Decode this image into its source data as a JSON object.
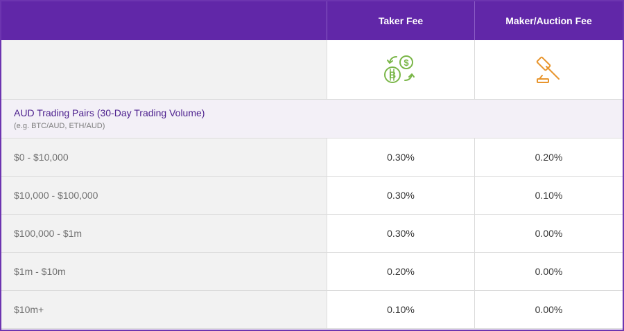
{
  "header": {
    "taker_label": "Taker Fee",
    "maker_label": "Maker/Auction Fee"
  },
  "icons": {
    "taker": "crypto-exchange-icon",
    "maker": "auction-gavel-icon",
    "taker_color": "#7ab648",
    "maker_color": "#e8952d"
  },
  "section": {
    "title": "AUD Trading Pairs (30-Day Trading Volume)",
    "subtitle": "(e.g. BTC/AUD, ETH/AUD)"
  },
  "rows": [
    {
      "tier": "$0 - $10,000",
      "taker": "0.30%",
      "maker": "0.20%"
    },
    {
      "tier": "$10,000 - $100,000",
      "taker": "0.30%",
      "maker": "0.10%"
    },
    {
      "tier": "$100,000 - $1m",
      "taker": "0.30%",
      "maker": "0.00%"
    },
    {
      "tier": "$1m - $10m",
      "taker": "0.20%",
      "maker": "0.00%"
    },
    {
      "tier": "$10m+",
      "taker": "0.10%",
      "maker": "0.00%"
    }
  ],
  "colors": {
    "header_bg": "#6127a8",
    "section_title": "#4a1d8c"
  }
}
